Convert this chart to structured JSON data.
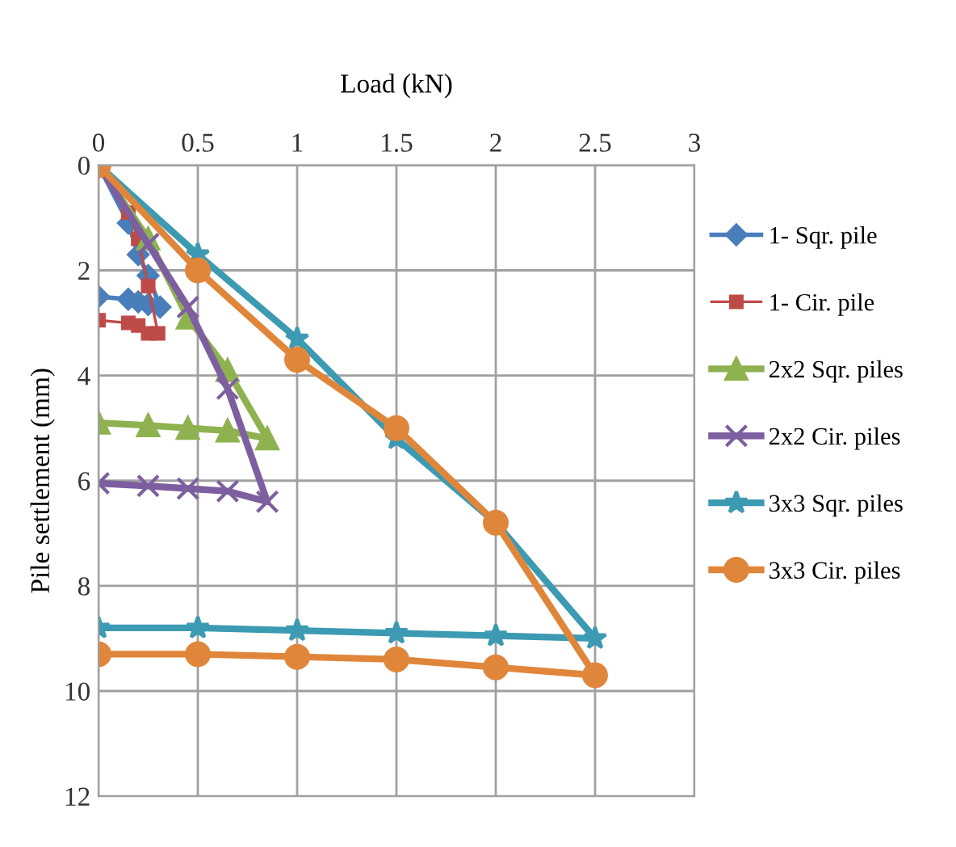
{
  "chart_data": {
    "type": "line",
    "xlabel": "Load (kN)",
    "ylabel": "Pile settlement (mm)",
    "xlim": [
      0,
      3
    ],
    "xticks": [
      0,
      0.5,
      1,
      1.5,
      2,
      2.5,
      3
    ],
    "ylim": [
      12,
      0
    ],
    "yticks": [
      0,
      2,
      4,
      6,
      8,
      10,
      12
    ],
    "grid": true,
    "legend": "right",
    "series": [
      {
        "name": "1- Sqr. pile",
        "color": "#4a7ebb",
        "marker": "diamond",
        "x": [
          0,
          0.15,
          0.2,
          0.25,
          0.31,
          0.25,
          0.2,
          0.15,
          0
        ],
        "values": [
          0,
          1.1,
          1.7,
          2.1,
          2.7,
          2.65,
          2.6,
          2.55,
          2.5
        ]
      },
      {
        "name": "1- Cir. pile",
        "color": "#be4b48",
        "marker": "square",
        "x": [
          0,
          0.15,
          0.2,
          0.25,
          0.3,
          0.25,
          0.2,
          0.15,
          0
        ],
        "values": [
          0,
          0.9,
          1.4,
          2.3,
          3.2,
          3.2,
          3.05,
          3.0,
          2.95
        ]
      },
      {
        "name": "2x2 Sqr. piles",
        "color": "#8eb24f",
        "marker": "triangle",
        "x": [
          0,
          0.25,
          0.45,
          0.65,
          0.85,
          0.65,
          0.45,
          0.25,
          0
        ],
        "values": [
          0,
          1.4,
          2.9,
          3.9,
          5.2,
          5.05,
          5.0,
          4.95,
          4.9
        ]
      },
      {
        "name": "2x2 Cir. piles",
        "color": "#7d5fa0",
        "marker": "cross",
        "x": [
          0,
          0.25,
          0.45,
          0.65,
          0.85,
          0.65,
          0.45,
          0.25,
          0
        ],
        "values": [
          0,
          1.5,
          2.7,
          4.25,
          6.4,
          6.2,
          6.15,
          6.1,
          6.05
        ]
      },
      {
        "name": "3x3 Sqr. piles",
        "color": "#3c9ab2",
        "marker": "star",
        "x": [
          0,
          0.5,
          1,
          1.5,
          2,
          2.5,
          2,
          1.5,
          1,
          0.5,
          0
        ],
        "values": [
          0,
          1.7,
          3.3,
          5.2,
          6.8,
          9.0,
          8.95,
          8.9,
          8.85,
          8.8,
          8.8
        ]
      },
      {
        "name": "3x3 Cir. piles",
        "color": "#e0863a",
        "marker": "circle",
        "x": [
          0,
          0.5,
          1,
          1.5,
          2,
          2.5,
          2,
          1.5,
          1,
          0.5,
          0
        ],
        "values": [
          0,
          2.0,
          3.7,
          5.0,
          6.8,
          9.7,
          9.55,
          9.4,
          9.35,
          9.3,
          9.3
        ]
      }
    ]
  }
}
